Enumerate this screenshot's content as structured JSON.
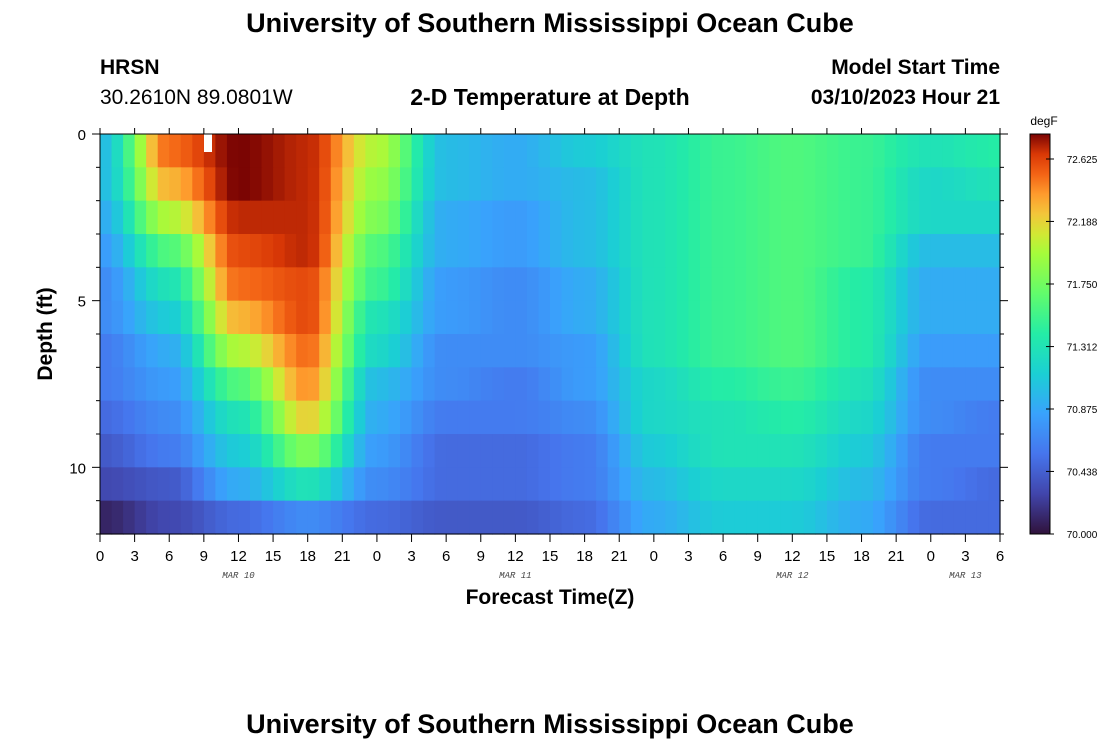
{
  "page": {
    "title_top": "University of Southern Mississippi Ocean Cube",
    "title_bottom": "University of Southern Mississippi Ocean Cube",
    "station_id": "HRSN",
    "station_coords": "30.2610N  89.0801W",
    "plot_title": "2-D Temperature at Depth",
    "model_start_label": "Model Start Time",
    "model_start_value": "03/10/2023 Hour 21"
  },
  "chart_data": {
    "type": "heatmap",
    "title": "2-D Temperature at Depth",
    "xlabel": "Forecast Time(Z)",
    "ylabel": "Depth (ft)",
    "x_unit": "hours since 03/10 00Z",
    "x_range": [
      0,
      78
    ],
    "x_tick_values": [
      0,
      3,
      6,
      9,
      12,
      15,
      18,
      21,
      24,
      27,
      30,
      33,
      36,
      39,
      42,
      45,
      48,
      51,
      54,
      57,
      60,
      63,
      66,
      69,
      72,
      75,
      78
    ],
    "x_tick_labels": [
      "0",
      "3",
      "6",
      "9",
      "12",
      "15",
      "18",
      "21",
      "0",
      "3",
      "6",
      "9",
      "12",
      "15",
      "18",
      "21",
      "0",
      "3",
      "6",
      "9",
      "12",
      "15",
      "18",
      "21",
      "0",
      "3",
      "6"
    ],
    "date_labels": [
      {
        "text": "MAR 10",
        "hour": 12
      },
      {
        "text": "MAR 11",
        "hour": 36
      },
      {
        "text": "MAR 12",
        "hour": 60
      },
      {
        "text": "MAR 13",
        "hour": 75
      }
    ],
    "y_range": [
      0,
      12
    ],
    "y_reversed": true,
    "y_ticks": [
      0,
      5,
      10
    ],
    "y_tick_labels": [
      "0",
      "5",
      "10"
    ],
    "colorbar": {
      "unit": "degF",
      "min": 70.0,
      "max": 72.8,
      "ticks": [
        70.0,
        70.438,
        70.875,
        71.312,
        71.75,
        72.188,
        72.625
      ],
      "tick_labels": [
        "70.000",
        "70.438",
        "70.875",
        "71.312",
        "71.750",
        "72.188",
        "72.625"
      ]
    },
    "depth_levels_ft": [
      0.5,
      1.5,
      2.5,
      3.5,
      4.5,
      5.5,
      6.5,
      7.5,
      8.5,
      9.5,
      10.5,
      11.5
    ],
    "time_hours": [
      0,
      6,
      12,
      18,
      24,
      30,
      36,
      42,
      48,
      54,
      60,
      66,
      72,
      78
    ],
    "temperature_degF": [
      [
        71.0,
        72.5,
        72.8,
        72.7,
        72.0,
        71.0,
        70.9,
        71.1,
        71.3,
        71.5,
        71.6,
        71.5,
        71.3,
        71.4
      ],
      [
        71.0,
        72.3,
        72.8,
        72.7,
        71.9,
        71.0,
        70.9,
        71.0,
        71.3,
        71.5,
        71.6,
        71.5,
        71.2,
        71.3
      ],
      [
        70.9,
        72.0,
        72.7,
        72.7,
        71.8,
        70.9,
        70.8,
        71.0,
        71.3,
        71.5,
        71.6,
        71.5,
        71.2,
        71.2
      ],
      [
        70.8,
        71.6,
        72.6,
        72.7,
        71.6,
        70.9,
        70.8,
        71.0,
        71.3,
        71.5,
        71.6,
        71.5,
        71.0,
        71.0
      ],
      [
        70.7,
        71.3,
        72.5,
        72.6,
        71.5,
        70.8,
        70.7,
        70.9,
        71.3,
        71.5,
        71.6,
        71.4,
        70.9,
        70.9
      ],
      [
        70.7,
        71.1,
        72.3,
        72.6,
        71.3,
        70.8,
        70.7,
        70.9,
        71.3,
        71.5,
        71.6,
        71.4,
        70.9,
        70.9
      ],
      [
        70.6,
        70.9,
        72.0,
        72.5,
        71.2,
        70.7,
        70.7,
        70.8,
        71.3,
        71.5,
        71.6,
        71.4,
        70.8,
        70.8
      ],
      [
        70.6,
        70.8,
        71.6,
        72.4,
        71.0,
        70.7,
        70.6,
        70.8,
        71.2,
        71.4,
        71.5,
        71.3,
        70.7,
        70.7
      ],
      [
        70.5,
        70.7,
        71.3,
        72.2,
        70.9,
        70.6,
        70.6,
        70.7,
        71.2,
        71.3,
        71.4,
        71.2,
        70.7,
        70.6
      ],
      [
        70.4,
        70.6,
        71.1,
        71.8,
        70.8,
        70.5,
        70.5,
        70.6,
        71.1,
        71.3,
        71.3,
        71.1,
        70.6,
        70.6
      ],
      [
        70.3,
        70.4,
        70.9,
        71.3,
        70.7,
        70.5,
        70.5,
        70.6,
        71.0,
        71.2,
        71.2,
        71.0,
        70.6,
        70.5
      ],
      [
        70.1,
        70.3,
        70.5,
        70.7,
        70.5,
        70.4,
        70.4,
        70.5,
        70.9,
        71.1,
        71.1,
        70.9,
        70.5,
        70.5
      ]
    ]
  }
}
